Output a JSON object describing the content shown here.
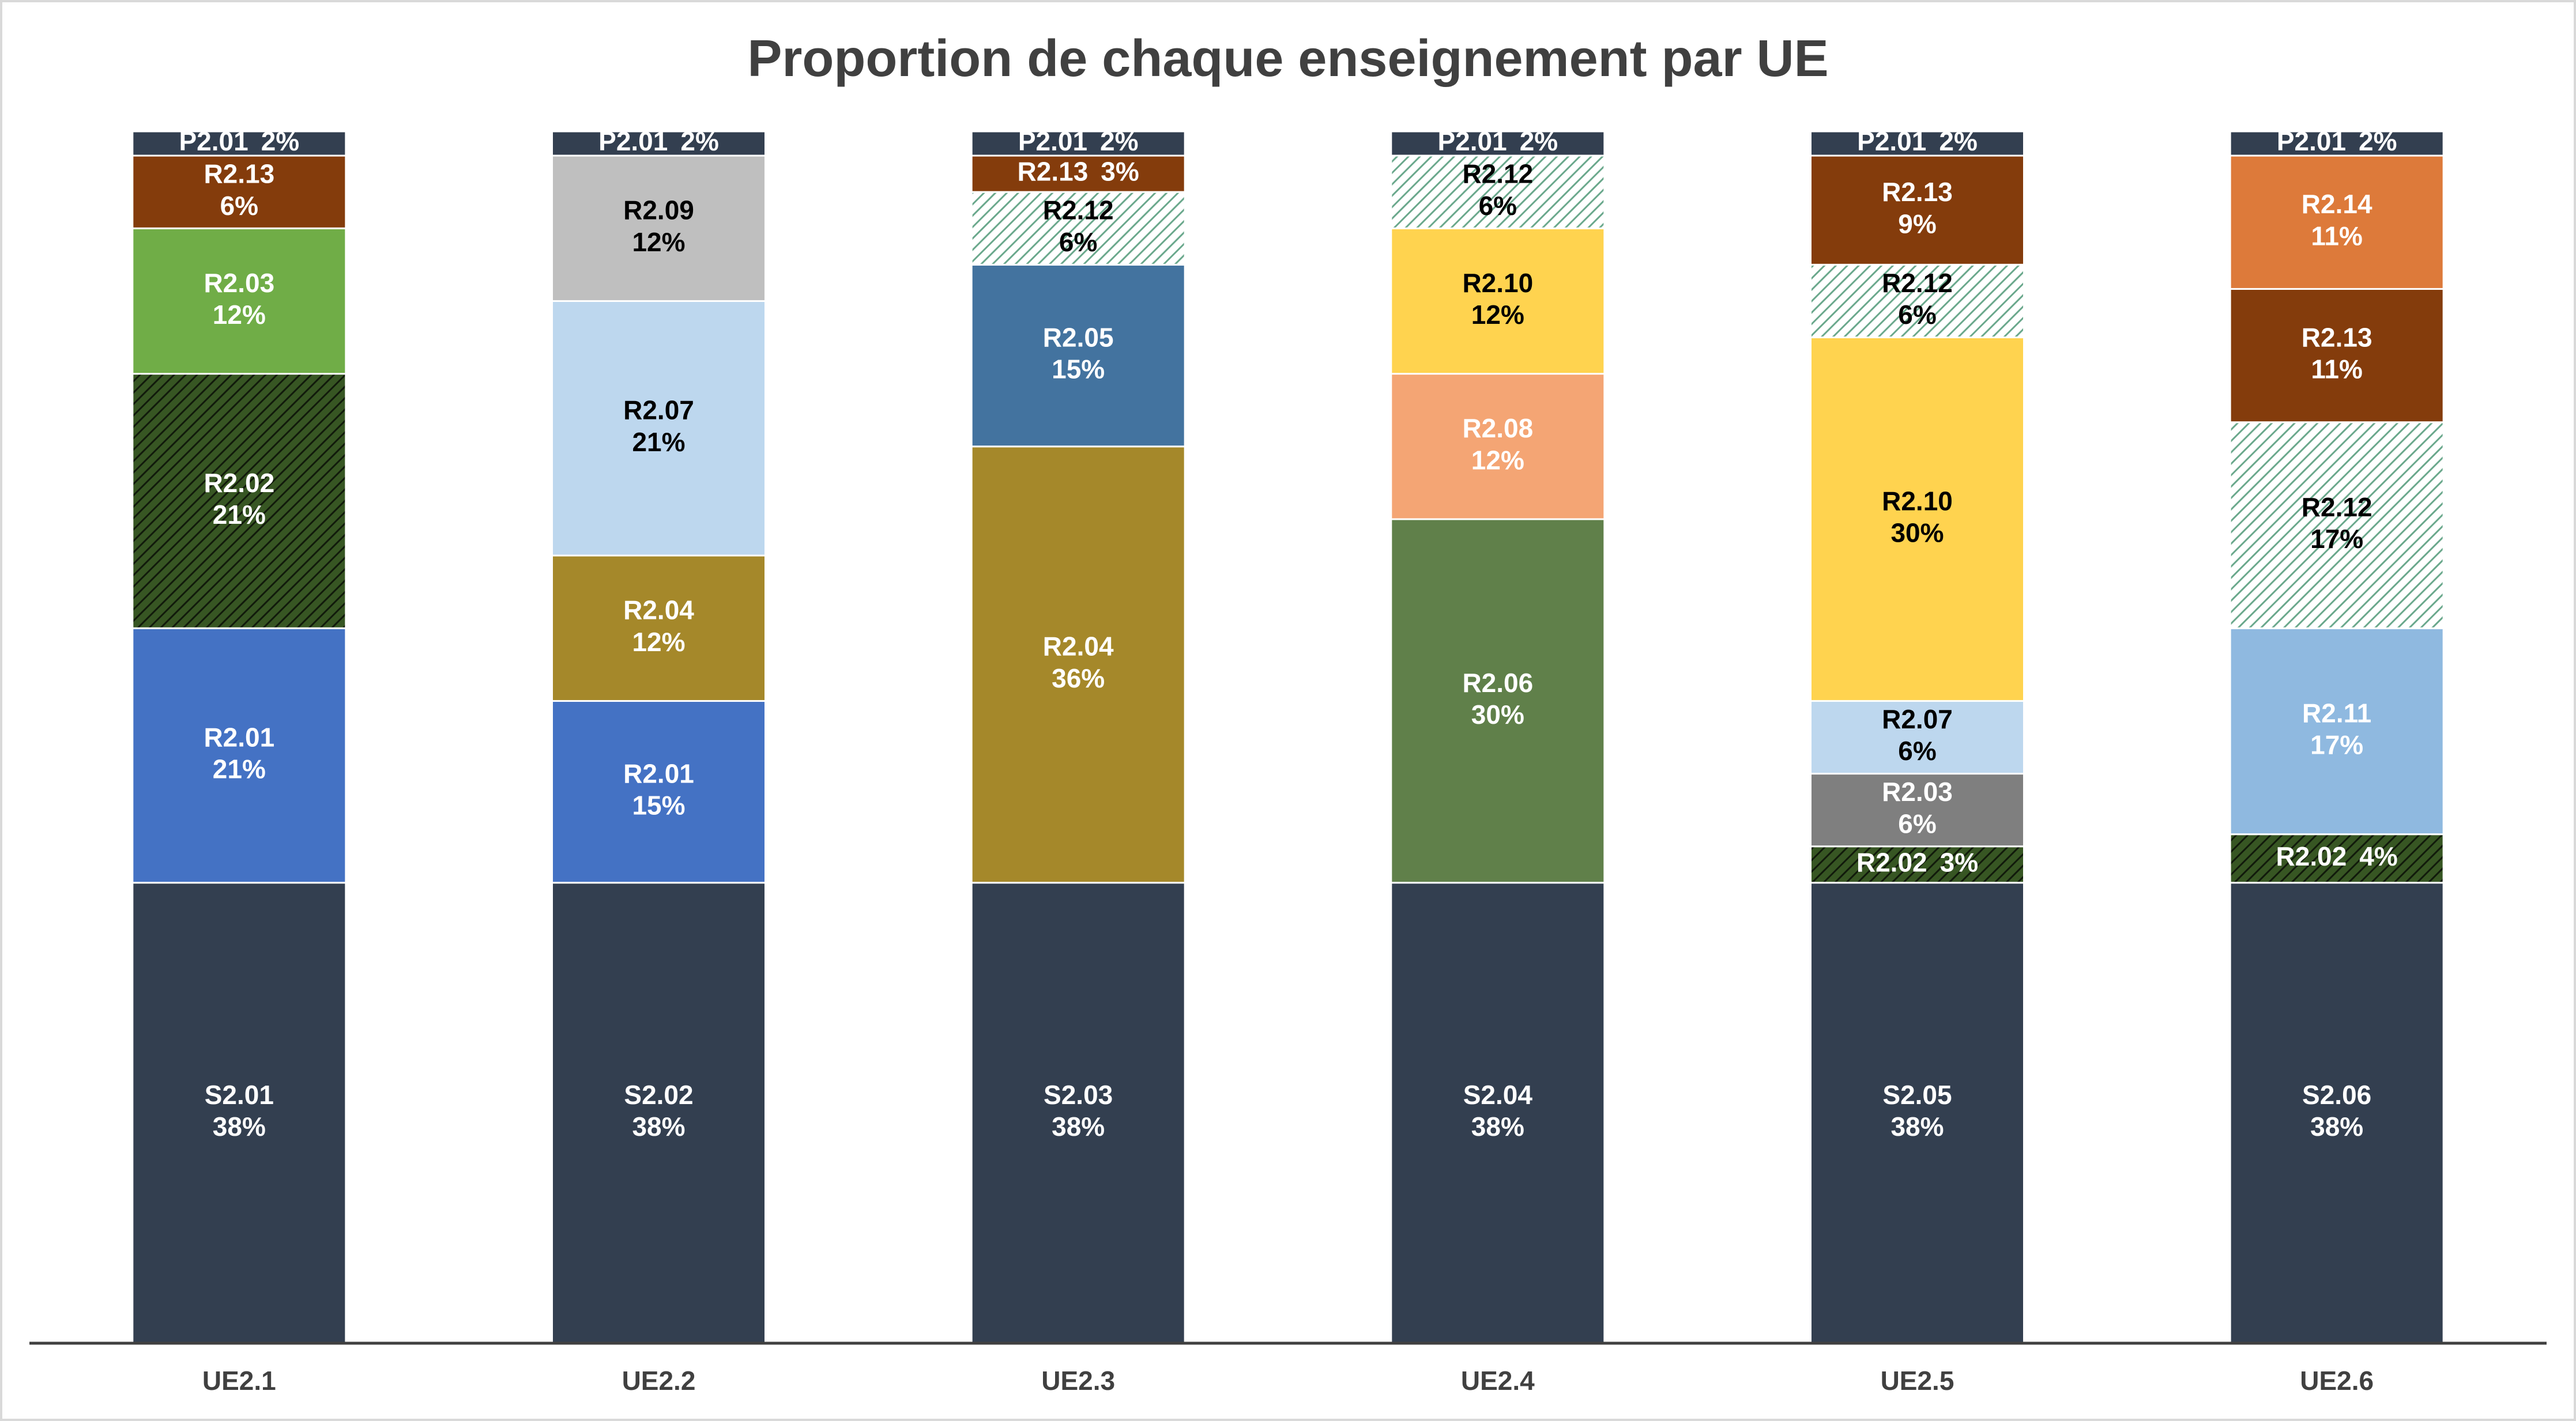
{
  "chart_data": {
    "type": "stacked_bar",
    "title": "Proportion de chaque enseignement par UE",
    "categories": [
      "UE2.1",
      "UE2.2",
      "UE2.3",
      "UE2.4",
      "UE2.5",
      "UE2.6"
    ],
    "stacks": [
      {
        "segments": [
          {
            "name": "S2.01",
            "value": 38,
            "value_label": "38%",
            "color": "#333f50",
            "text_color": "#ffffff"
          },
          {
            "name": "R2.01",
            "value": 21,
            "value_label": "21%",
            "color": "#4472c4",
            "text_color": "#ffffff"
          },
          {
            "name": "R2.02",
            "value": 21,
            "value_label": "21%",
            "color": "#375623",
            "pattern_color": "#111a0b",
            "text_color": "#ffffff"
          },
          {
            "name": "R2.03",
            "value": 12,
            "value_label": "12%",
            "color": "#70ad47",
            "text_color": "#ffffff"
          },
          {
            "name": "R2.13",
            "value": 6,
            "value_label": "6%",
            "color": "#843c0c",
            "text_color": "#ffffff"
          },
          {
            "name": "P2.01",
            "value": 2,
            "value_label": "2%",
            "color": "#333f50",
            "text_color": "#ffffff"
          }
        ]
      },
      {
        "segments": [
          {
            "name": "S2.02",
            "value": 38,
            "value_label": "38%",
            "color": "#333f50",
            "text_color": "#ffffff"
          },
          {
            "name": "R2.01",
            "value": 15,
            "value_label": "15%",
            "color": "#4472c4",
            "text_color": "#ffffff"
          },
          {
            "name": "R2.04",
            "value": 12,
            "value_label": "12%",
            "color": "#a5882a",
            "text_color": "#ffffff"
          },
          {
            "name": "R2.07",
            "value": 21,
            "value_label": "21%",
            "color": "#bdd7ee",
            "text_color": "#000000"
          },
          {
            "name": "R2.09",
            "value": 12,
            "value_label": "12%",
            "color": "#bfbfbf",
            "text_color": "#000000"
          },
          {
            "name": "P2.01",
            "value": 2,
            "value_label": "2%",
            "color": "#333f50",
            "text_color": "#ffffff"
          }
        ]
      },
      {
        "segments": [
          {
            "name": "S2.03",
            "value": 38,
            "value_label": "38%",
            "color": "#333f50",
            "text_color": "#ffffff"
          },
          {
            "name": "R2.04",
            "value": 36,
            "value_label": "36%",
            "color": "#a5882a",
            "text_color": "#ffffff"
          },
          {
            "name": "R2.05",
            "value": 15,
            "value_label": "15%",
            "color": "#43739f",
            "text_color": "#ffffff"
          },
          {
            "name": "R2.12",
            "value": 6,
            "value_label": "6%",
            "color": "#ffffff",
            "pattern_color": "#6aa88c",
            "text_color": "#000000"
          },
          {
            "name": "R2.13",
            "value": 3,
            "value_label": "3%",
            "color": "#843c0c",
            "text_color": "#ffffff"
          },
          {
            "name": "P2.01",
            "value": 2,
            "value_label": "2%",
            "color": "#333f50",
            "text_color": "#ffffff"
          }
        ]
      },
      {
        "segments": [
          {
            "name": "S2.04",
            "value": 38,
            "value_label": "38%",
            "color": "#333f50",
            "text_color": "#ffffff"
          },
          {
            "name": "R2.06",
            "value": 30,
            "value_label": "30%",
            "color": "#60804a",
            "text_color": "#ffffff"
          },
          {
            "name": "R2.08",
            "value": 12,
            "value_label": "12%",
            "color": "#f4a574",
            "text_color": "#ffffff"
          },
          {
            "name": "R2.10",
            "value": 12,
            "value_label": "12%",
            "color": "#ffd34f",
            "text_color": "#000000"
          },
          {
            "name": "R2.12",
            "value": 6,
            "value_label": "6%",
            "color": "#ffffff",
            "pattern_color": "#6aa88c",
            "text_color": "#000000"
          },
          {
            "name": "P2.01",
            "value": 2,
            "value_label": "2%",
            "color": "#333f50",
            "text_color": "#ffffff"
          }
        ]
      },
      {
        "segments": [
          {
            "name": "S2.05",
            "value": 38,
            "value_label": "38%",
            "color": "#333f50",
            "text_color": "#ffffff"
          },
          {
            "name": "R2.02",
            "value": 3,
            "value_label": "3%",
            "color": "#375623",
            "pattern_color": "#111a0b",
            "text_color": "#ffffff"
          },
          {
            "name": "R2.03",
            "value": 6,
            "value_label": "6%",
            "color": "#7f7f7f",
            "text_color": "#ffffff"
          },
          {
            "name": "R2.07",
            "value": 6,
            "value_label": "6%",
            "color": "#bdd7ee",
            "text_color": "#000000"
          },
          {
            "name": "R2.10",
            "value": 30,
            "value_label": "30%",
            "color": "#ffd34f",
            "text_color": "#000000"
          },
          {
            "name": "R2.12",
            "value": 6,
            "value_label": "6%",
            "color": "#ffffff",
            "pattern_color": "#6aa88c",
            "text_color": "#000000"
          },
          {
            "name": "R2.13",
            "value": 9,
            "value_label": "9%",
            "color": "#843c0c",
            "text_color": "#ffffff"
          },
          {
            "name": "P2.01",
            "value": 2,
            "value_label": "2%",
            "color": "#333f50",
            "text_color": "#ffffff"
          }
        ]
      },
      {
        "segments": [
          {
            "name": "S2.06",
            "value": 38,
            "value_label": "38%",
            "color": "#333f50",
            "text_color": "#ffffff"
          },
          {
            "name": "R2.02",
            "value": 4,
            "value_label": "4%",
            "color": "#375623",
            "pattern_color": "#111a0b",
            "text_color": "#ffffff"
          },
          {
            "name": "R2.11",
            "value": 17,
            "value_label": "17%",
            "color": "#8fb9e0",
            "text_color": "#ffffff"
          },
          {
            "name": "R2.12",
            "value": 17,
            "value_label": "17%",
            "color": "#ffffff",
            "pattern_color": "#6aa88c",
            "text_color": "#000000"
          },
          {
            "name": "R2.13",
            "value": 11,
            "value_label": "11%",
            "color": "#843c0c",
            "text_color": "#ffffff"
          },
          {
            "name": "R2.14",
            "value": 11,
            "value_label": "11%",
            "color": "#dd7a3a",
            "text_color": "#ffffff"
          },
          {
            "name": "P2.01",
            "value": 2,
            "value_label": "2%",
            "color": "#333f50",
            "text_color": "#ffffff"
          }
        ]
      }
    ]
  }
}
